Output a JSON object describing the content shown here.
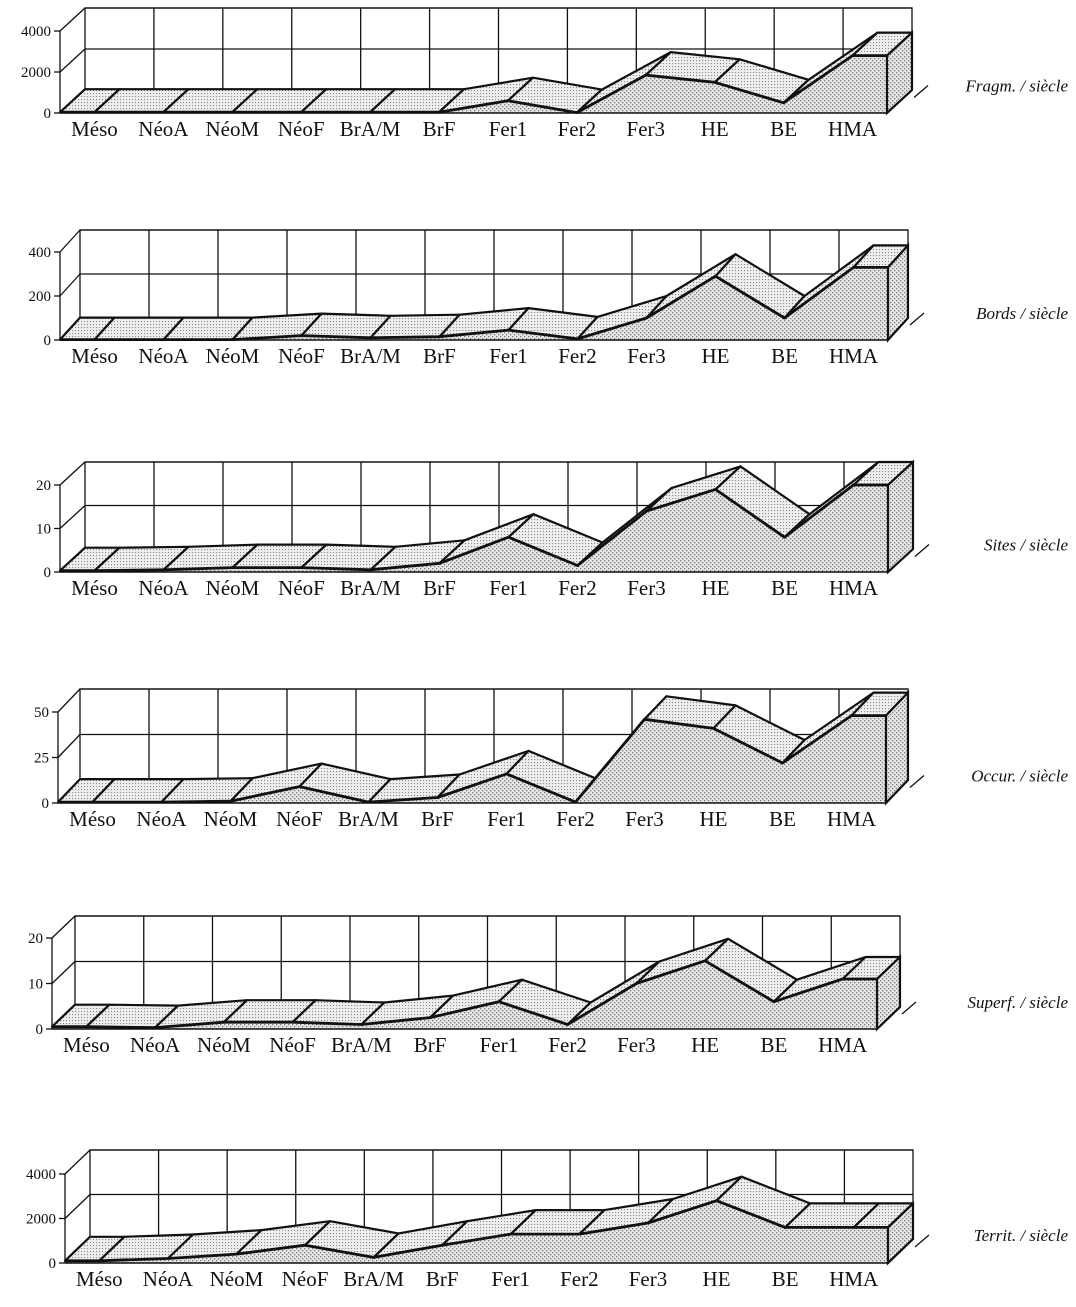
{
  "chart_data": [
    {
      "type": "area",
      "side_label": "Fragm. / siècle",
      "categories": [
        "Méso",
        "NéoA",
        "NéoM",
        "NéoF",
        "BrA/M",
        "BrF",
        "Fer1",
        "Fer2",
        "Fer3",
        "HE",
        "BE",
        "HMA"
      ],
      "yticks": [
        "4000",
        "2000",
        "0"
      ],
      "ylim": [
        0,
        4000
      ],
      "values": [
        40,
        40,
        40,
        40,
        40,
        40,
        600,
        20,
        1850,
        1500,
        500,
        2800
      ]
    },
    {
      "type": "area",
      "side_label": "Bords / siècle",
      "categories": [
        "Méso",
        "NéoA",
        "NéoM",
        "NéoF",
        "BrA/M",
        "BrF",
        "Fer1",
        "Fer2",
        "Fer3",
        "HE",
        "BE",
        "HMA"
      ],
      "yticks": [
        "400",
        "200",
        "0"
      ],
      "ylim": [
        0,
        400
      ],
      "values": [
        2,
        2,
        2,
        20,
        10,
        15,
        45,
        5,
        100,
        290,
        100,
        330
      ]
    },
    {
      "type": "area",
      "side_label": "Sites / siècle",
      "categories": [
        "Méso",
        "NéoA",
        "NéoM",
        "NéoF",
        "BrA/M",
        "BrF",
        "Fer1",
        "Fer2",
        "Fer3",
        "HE",
        "BE",
        "HMA"
      ],
      "yticks": [
        "20",
        "10",
        "0"
      ],
      "ylim": [
        0,
        20
      ],
      "values": [
        0.3,
        0.5,
        1,
        1,
        0.5,
        2,
        8,
        1.5,
        14,
        19,
        8,
        20
      ]
    },
    {
      "type": "area",
      "side_label": "Occur. / siècle",
      "categories": [
        "Méso",
        "NéoA",
        "NéoM",
        "NéoF",
        "BrA/M",
        "BrF",
        "Fer1",
        "Fer2",
        "Fer3",
        "HE",
        "BE",
        "HMA"
      ],
      "yticks": [
        "50",
        "25",
        "0"
      ],
      "ylim": [
        0,
        50
      ],
      "values": [
        0.5,
        0.5,
        1,
        9,
        0.5,
        3,
        16,
        0.5,
        46,
        41,
        22,
        48
      ]
    },
    {
      "type": "area",
      "side_label": "Superf. / siècle",
      "categories": [
        "Méso",
        "NéoA",
        "NéoM",
        "NéoF",
        "BrA/M",
        "BrF",
        "Fer1",
        "Fer2",
        "Fer3",
        "HE",
        "BE",
        "HMA"
      ],
      "yticks": [
        "20",
        "10",
        "0"
      ],
      "ylim": [
        0,
        20
      ],
      "values": [
        0.5,
        0.3,
        1.5,
        1.5,
        1,
        2.5,
        6,
        1,
        10,
        15,
        6,
        11
      ]
    },
    {
      "type": "area",
      "side_label": "Territ. / siècle",
      "categories": [
        "Méso",
        "NéoA",
        "NéoM",
        "NéoF",
        "BrA/M",
        "BrF",
        "Fer1",
        "Fer2",
        "Fer3",
        "HE",
        "BE",
        "HMA"
      ],
      "yticks": [
        "4000",
        "2000",
        "0"
      ],
      "ylim": [
        0,
        4000
      ],
      "values": [
        100,
        200,
        400,
        800,
        250,
        800,
        1300,
        1300,
        1800,
        2800,
        1600,
        1600
      ]
    }
  ]
}
